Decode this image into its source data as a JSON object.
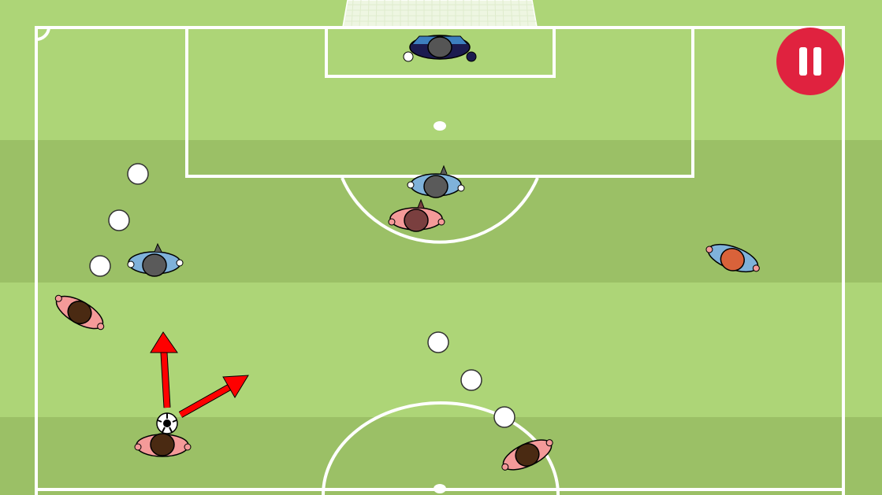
{
  "colors": {
    "grass_light": "#add577",
    "grass_dark": "#9bc066",
    "lines": "#ffffff",
    "net": "#e9f3d8",
    "team_home": "#f49a99",
    "team_away": "#7fb2da",
    "goalkeeper": "#1b1b4f",
    "pass_arrow": "#ff0000",
    "pause_button": "#e0223f",
    "marker": "#ffffff"
  },
  "hud": {
    "pause_icon": "pause-icon"
  },
  "players": [
    {
      "id": "goalkeeper",
      "team": "away",
      "role": "goalkeeper",
      "hair": "#555555"
    },
    {
      "id": "defender-center",
      "team": "away",
      "role": "defender",
      "hair": "#5a5a5a"
    },
    {
      "id": "defender-left",
      "team": "away",
      "role": "defender",
      "hair": "#5a5a5a"
    },
    {
      "id": "defender-right",
      "team": "away",
      "role": "defender",
      "hair": "#d9623a"
    },
    {
      "id": "striker-center",
      "team": "home",
      "role": "attacker",
      "hair": "#7a3f3f"
    },
    {
      "id": "winger-left",
      "team": "home",
      "role": "attacker",
      "hair": "#4a2a12"
    },
    {
      "id": "ball-carrier",
      "team": "home",
      "role": "attacker",
      "hair": "#4a2a12",
      "has_ball": true
    },
    {
      "id": "midfielder-right",
      "team": "home",
      "role": "attacker",
      "hair": "#4a2a12"
    }
  ],
  "pass_options": [
    {
      "id": "pass-forward",
      "target": "up"
    },
    {
      "id": "pass-diagonal",
      "target": "upper-right"
    }
  ],
  "markers": {
    "left_trail": 3,
    "center_trail": 3,
    "counts_total": 6
  }
}
